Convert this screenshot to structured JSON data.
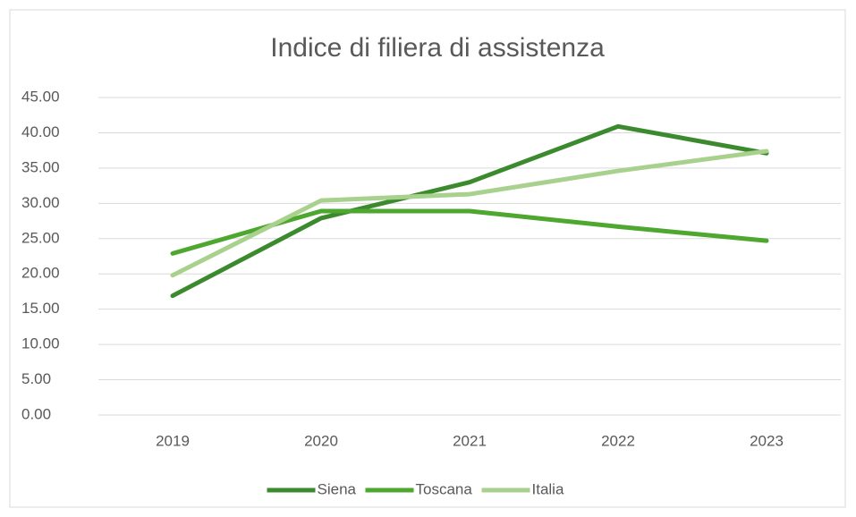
{
  "chart_data": {
    "type": "line",
    "title": "Indice di filiera di assistenza",
    "categories": [
      "2019",
      "2020",
      "2021",
      "2022",
      "2023"
    ],
    "series": [
      {
        "name": "Siena",
        "color": "#3c8a2e",
        "values": [
          16.9,
          27.9,
          33.0,
          40.9,
          37.1
        ]
      },
      {
        "name": "Toscana",
        "color": "#4ea72e",
        "values": [
          22.9,
          28.9,
          28.9,
          26.7,
          24.7
        ]
      },
      {
        "name": "Italia",
        "color": "#a9d18e",
        "values": [
          19.8,
          30.4,
          31.3,
          34.6,
          37.4
        ]
      }
    ],
    "ylim": [
      0,
      45
    ],
    "yticks": [
      {
        "value": 0,
        "label": "0.00"
      },
      {
        "value": 5,
        "label": "5.00"
      },
      {
        "value": 10,
        "label": "10.00"
      },
      {
        "value": 15,
        "label": "15.00"
      },
      {
        "value": 20,
        "label": "20.00"
      },
      {
        "value": 25,
        "label": "25.00"
      },
      {
        "value": 30,
        "label": "30.00"
      },
      {
        "value": 35,
        "label": "35.00"
      },
      {
        "value": 40,
        "label": "40.00"
      },
      {
        "value": 45,
        "label": "45.00"
      }
    ],
    "grid": true,
    "legend": "bottom"
  }
}
